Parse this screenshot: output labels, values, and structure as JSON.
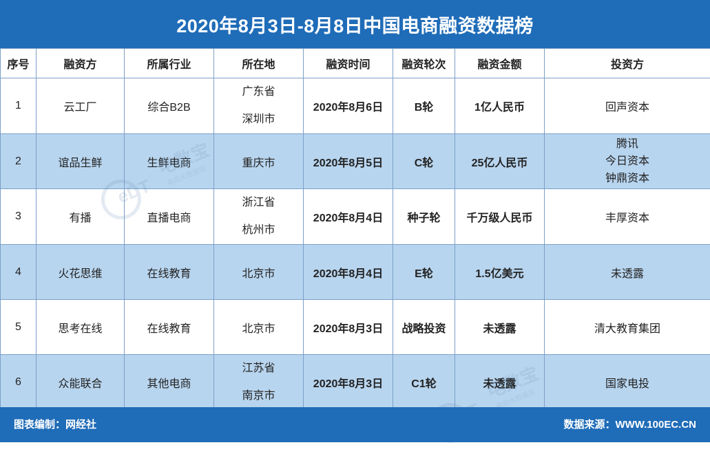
{
  "title": "2020年8月3日-8月8日中国电商融资数据榜",
  "headers": [
    "序号",
    "融资方",
    "所属行业",
    "所在地",
    "融资时间",
    "融资轮次",
    "融资金额",
    "投资方"
  ],
  "rows": [
    {
      "no": "1",
      "company": "云工厂",
      "industry": "综合B2B",
      "location": [
        "广东省",
        "深圳市"
      ],
      "date": "2020年8月6日",
      "round": "B轮",
      "amount": "1亿人民币",
      "investors": [
        "回声资本"
      ]
    },
    {
      "no": "2",
      "company": "谊品生鲜",
      "industry": "生鲜电商",
      "location": [
        "重庆市"
      ],
      "date": "2020年8月5日",
      "round": "C轮",
      "amount": "25亿人民币",
      "investors": [
        "腾讯",
        "今日资本",
        "钟鼎资本"
      ]
    },
    {
      "no": "3",
      "company": "有播",
      "industry": "直播电商",
      "location": [
        "浙江省",
        "杭州市"
      ],
      "date": "2020年8月4日",
      "round": "种子轮",
      "amount": "千万级人民币",
      "investors": [
        "丰厚资本"
      ]
    },
    {
      "no": "4",
      "company": "火花思维",
      "industry": "在线教育",
      "location": [
        "北京市"
      ],
      "date": "2020年8月4日",
      "round": "E轮",
      "amount": "1.5亿美元",
      "investors": [
        "未透露"
      ]
    },
    {
      "no": "5",
      "company": "思考在线",
      "industry": "在线教育",
      "location": [
        "北京市"
      ],
      "date": "2020年8月3日",
      "round": "战略投资",
      "amount": "未透露",
      "investors": [
        "清大教育集团"
      ]
    },
    {
      "no": "6",
      "company": "众能联合",
      "industry": "其他电商",
      "location": [
        "江苏省",
        "南京市"
      ],
      "date": "2020年8月3日",
      "round": "C1轮",
      "amount": "未透露",
      "investors": [
        "国家电投"
      ]
    }
  ],
  "footer": {
    "editor": "图表编制：网经社",
    "source": "数据来源：WWW.100EC.CN"
  },
  "watermark": {
    "logo_text": "eDT",
    "name": "电数宝",
    "subtitle": "电商大数据库"
  },
  "colors": {
    "header_bar": "#1f6cb8",
    "row_shade": "#b8d5ef",
    "border": "#7b9fc8"
  }
}
